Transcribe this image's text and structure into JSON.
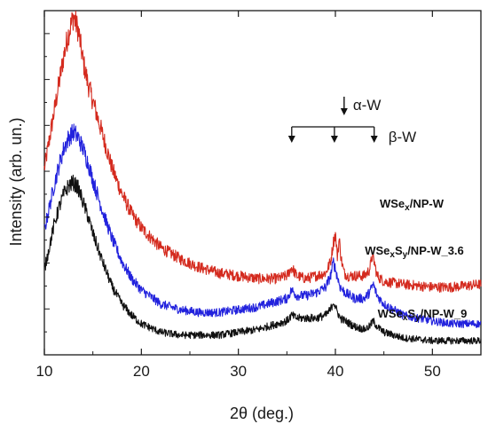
{
  "chart_data": {
    "type": "line",
    "title": "",
    "xlabel": "2θ (deg.)",
    "ylabel": "Intensity (arb. un.)",
    "xlim": [
      10,
      55
    ],
    "xticks": [
      10,
      20,
      30,
      40,
      50
    ],
    "y_tick_labels": false,
    "grid": false,
    "legend": "labels placed beside each curve (right side)",
    "series": [
      {
        "key": "wsex",
        "color": "#d42a1e",
        "label_parts": [
          {
            "text": "WSe"
          },
          {
            "text": "x",
            "sub": true
          },
          {
            "text": "/NP-W"
          }
        ],
        "x": [
          10,
          10.5,
          11,
          11.5,
          12,
          12.5,
          13,
          13.5,
          14,
          14.5,
          15,
          16,
          17,
          18,
          19,
          20,
          22,
          24,
          26,
          28,
          30,
          32,
          34,
          35,
          35.5,
          36,
          37,
          38,
          39,
          39.5,
          39.8,
          40.0,
          40.2,
          40.4,
          40.6,
          40.9,
          41.3,
          42,
          43,
          43.5,
          43.8,
          44.0,
          44.3,
          45,
          47,
          50,
          52,
          55
        ],
        "y": [
          0.62,
          0.72,
          0.82,
          0.92,
          1.02,
          1.1,
          1.16,
          1.11,
          1.0,
          0.92,
          0.86,
          0.74,
          0.62,
          0.53,
          0.46,
          0.41,
          0.34,
          0.3,
          0.27,
          0.25,
          0.24,
          0.23,
          0.23,
          0.24,
          0.27,
          0.24,
          0.23,
          0.24,
          0.25,
          0.29,
          0.36,
          0.39,
          0.31,
          0.37,
          0.3,
          0.25,
          0.24,
          0.24,
          0.24,
          0.26,
          0.31,
          0.29,
          0.24,
          0.22,
          0.21,
          0.2,
          0.2,
          0.21
        ]
      },
      {
        "key": "wsexsy36",
        "color": "#2222dd",
        "label_parts": [
          {
            "text": "WSe"
          },
          {
            "text": "x",
            "sub": true
          },
          {
            "text": "S"
          },
          {
            "text": "y",
            "sub": true
          },
          {
            "text": "/NP-W_3.6"
          }
        ],
        "x": [
          10,
          10.5,
          11,
          11.5,
          12,
          12.5,
          13,
          13.5,
          14,
          14.5,
          15,
          16,
          17,
          18,
          19,
          20,
          22,
          24,
          26,
          28,
          30,
          32,
          34,
          35,
          35.5,
          36,
          37,
          38,
          39,
          39.5,
          39.8,
          40.1,
          40.5,
          41,
          42,
          43,
          43.5,
          43.9,
          44.3,
          45,
          47,
          50,
          52,
          55
        ],
        "y": [
          0.4,
          0.48,
          0.56,
          0.63,
          0.69,
          0.73,
          0.75,
          0.73,
          0.69,
          0.64,
          0.58,
          0.47,
          0.37,
          0.29,
          0.23,
          0.19,
          0.14,
          0.12,
          0.11,
          0.11,
          0.12,
          0.13,
          0.15,
          0.16,
          0.19,
          0.17,
          0.17,
          0.18,
          0.2,
          0.24,
          0.29,
          0.25,
          0.2,
          0.18,
          0.16,
          0.16,
          0.18,
          0.21,
          0.17,
          0.14,
          0.1,
          0.08,
          0.07,
          0.07
        ]
      },
      {
        "key": "wsexsy9",
        "color": "#111111",
        "label_parts": [
          {
            "text": "WSe"
          },
          {
            "text": "x",
            "sub": true
          },
          {
            "text": "S"
          },
          {
            "text": "y",
            "sub": true
          },
          {
            "text": "/NP-W_9"
          }
        ],
        "x": [
          10,
          10.5,
          11,
          11.5,
          12,
          12.5,
          13,
          13.5,
          14,
          14.5,
          15,
          16,
          17,
          18,
          19,
          20,
          22,
          24,
          26,
          28,
          30,
          32,
          34,
          35,
          35.5,
          36,
          37,
          38,
          39,
          39.5,
          39.8,
          40.1,
          40.5,
          41,
          42,
          43,
          43.5,
          43.9,
          44.3,
          45,
          47,
          50,
          52,
          55
        ],
        "y": [
          0.26,
          0.34,
          0.42,
          0.48,
          0.53,
          0.56,
          0.57,
          0.55,
          0.5,
          0.45,
          0.39,
          0.29,
          0.2,
          0.14,
          0.1,
          0.07,
          0.04,
          0.03,
          0.03,
          0.03,
          0.04,
          0.05,
          0.07,
          0.08,
          0.1,
          0.09,
          0.09,
          0.09,
          0.1,
          0.12,
          0.15,
          0.12,
          0.09,
          0.08,
          0.06,
          0.05,
          0.06,
          0.08,
          0.06,
          0.04,
          0.02,
          0.01,
          0.01,
          0.01
        ]
      }
    ],
    "annotations": [
      {
        "key": "alpha",
        "text": "α-W",
        "arrow_x": [
          40.9
        ]
      },
      {
        "key": "beta",
        "text": "β-W",
        "arrow_x": [
          35.5,
          39.9,
          44.0
        ]
      }
    ]
  }
}
